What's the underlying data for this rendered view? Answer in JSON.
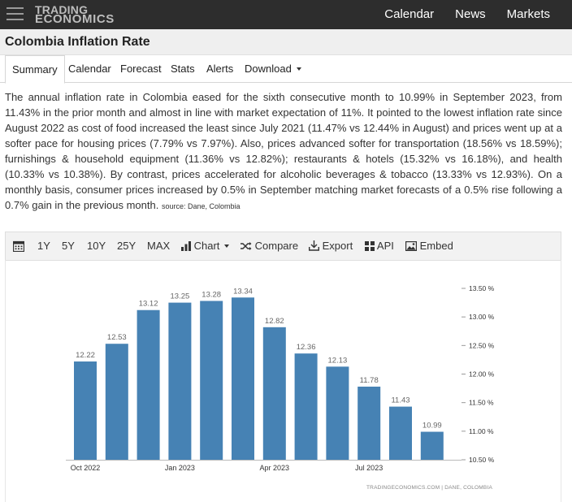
{
  "header": {
    "logo_line1": "TRADING",
    "logo_line2": "ECONOMICS",
    "nav": [
      "Calendar",
      "News",
      "Markets"
    ]
  },
  "page": {
    "title": "Colombia Inflation Rate"
  },
  "tabs": [
    {
      "label": "Summary",
      "active": true
    },
    {
      "label": "Calendar"
    },
    {
      "label": "Forecast"
    },
    {
      "label": "Stats"
    },
    {
      "label": "Alerts"
    },
    {
      "label": "Download"
    }
  ],
  "summary": {
    "text": "The annual inflation rate in Colombia eased for the sixth consecutive month to 10.99% in September 2023, from 11.43% in the prior month and almost in line with market expectation of 11%. It pointed to the lowest inflation rate since August 2022 as cost of food increased the least since July 2021 (11.47% vs 12.44% in August) and prices went up at a softer pace for housing prices (7.79% vs 7.97%). Also, prices advanced softer for transportation (18.56% vs 18.59%); furnishings & household equipment (11.36% vs 12.82%); restaurants & hotels (15.32% vs 16.18%), and health (10.33% vs 10.38%). By contrast, prices accelerated for alcoholic beverages & tobacco (13.33% vs 12.93%). On a monthly basis, consumer prices increased by 0.5% in September matching market forecasts of a 0.5% rise following a 0.7% gain in the previous month.",
    "source": "source: Dane, Colombia"
  },
  "toolbar": {
    "ranges": [
      "1Y",
      "5Y",
      "10Y",
      "25Y",
      "MAX"
    ],
    "chart_label": "Chart",
    "compare_label": "Compare",
    "export_label": "Export",
    "api_label": "API",
    "embed_label": "Embed"
  },
  "chart_data": {
    "type": "bar",
    "categories": [
      "Oct 2022",
      "Nov 2022",
      "Dec 2022",
      "Jan 2023",
      "Feb 2023",
      "Mar 2023",
      "Apr 2023",
      "May 2023",
      "Jun 2023",
      "Jul 2023",
      "Aug 2023",
      "Sep 2023"
    ],
    "values": [
      12.22,
      12.53,
      13.12,
      13.25,
      13.28,
      13.34,
      12.82,
      12.36,
      12.13,
      11.78,
      11.43,
      10.99
    ],
    "x_tick_labels": [
      {
        "index": 0,
        "label": "Oct 2022"
      },
      {
        "index": 3,
        "label": "Jan 2023"
      },
      {
        "index": 6,
        "label": "Apr 2023"
      },
      {
        "index": 9,
        "label": "Jul 2023"
      }
    ],
    "yticks": [
      "13.50 %",
      "13.00 %",
      "12.50 %",
      "12.00 %",
      "11.50 %",
      "11.00 %",
      "10.50 %"
    ],
    "ylim": [
      10.5,
      13.5
    ],
    "y_axis_side": "right",
    "bar_color": "#4682b4",
    "grid": false,
    "credit": "TRADINGECONOMICS.COM | DANE, COLOMBIA"
  }
}
